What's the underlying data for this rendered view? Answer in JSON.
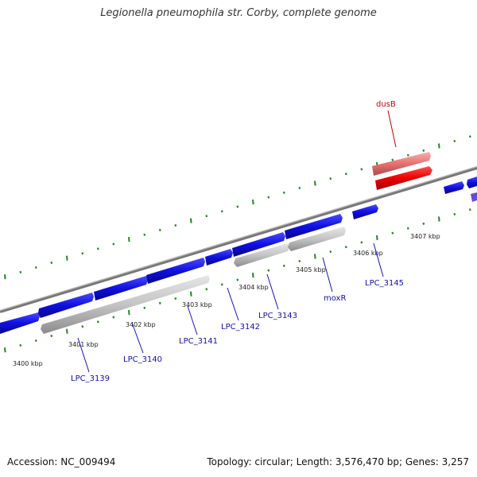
{
  "title": "Legionella pneumophila str. Corby, complete genome",
  "footer": {
    "accession": "Accession: NC_009494",
    "summary": "Topology: circular; Length: 3,576,470 bp; Genes: 3,257"
  },
  "colors": {
    "forward_gene": "#1010e0",
    "reverse_gene": "#c0c0c0",
    "highlight_gene": "#ee0000",
    "highlight_gene_light": "#e87070",
    "backbone": "#888888",
    "ticks": "#228822",
    "label_line_blue": "#1111cc",
    "label_line_red": "#cc0000"
  },
  "ticks": [
    {
      "label": "3400 kbp",
      "kbp": 3400
    },
    {
      "label": "3401 kbp",
      "kbp": 3401
    },
    {
      "label": "3402 kbp",
      "kbp": 3402
    },
    {
      "label": "3403 kbp",
      "kbp": 3403
    },
    {
      "label": "3404 kbp",
      "kbp": 3404
    },
    {
      "label": "3405 kbp",
      "kbp": 3405
    },
    {
      "label": "3406 kbp",
      "kbp": 3406
    },
    {
      "label": "3407 kbp",
      "kbp": 3407
    }
  ],
  "gene_labels": [
    {
      "label": "LPC_3139",
      "color": "blue"
    },
    {
      "label": "LPC_3140",
      "color": "blue"
    },
    {
      "label": "LPC_3141",
      "color": "blue"
    },
    {
      "label": "LPC_3142",
      "color": "blue"
    },
    {
      "label": "LPC_3143",
      "color": "blue"
    },
    {
      "label": "moxR",
      "color": "blue"
    },
    {
      "label": "LPC_3145",
      "color": "blue"
    },
    {
      "label": "dusB",
      "color": "red"
    }
  ]
}
